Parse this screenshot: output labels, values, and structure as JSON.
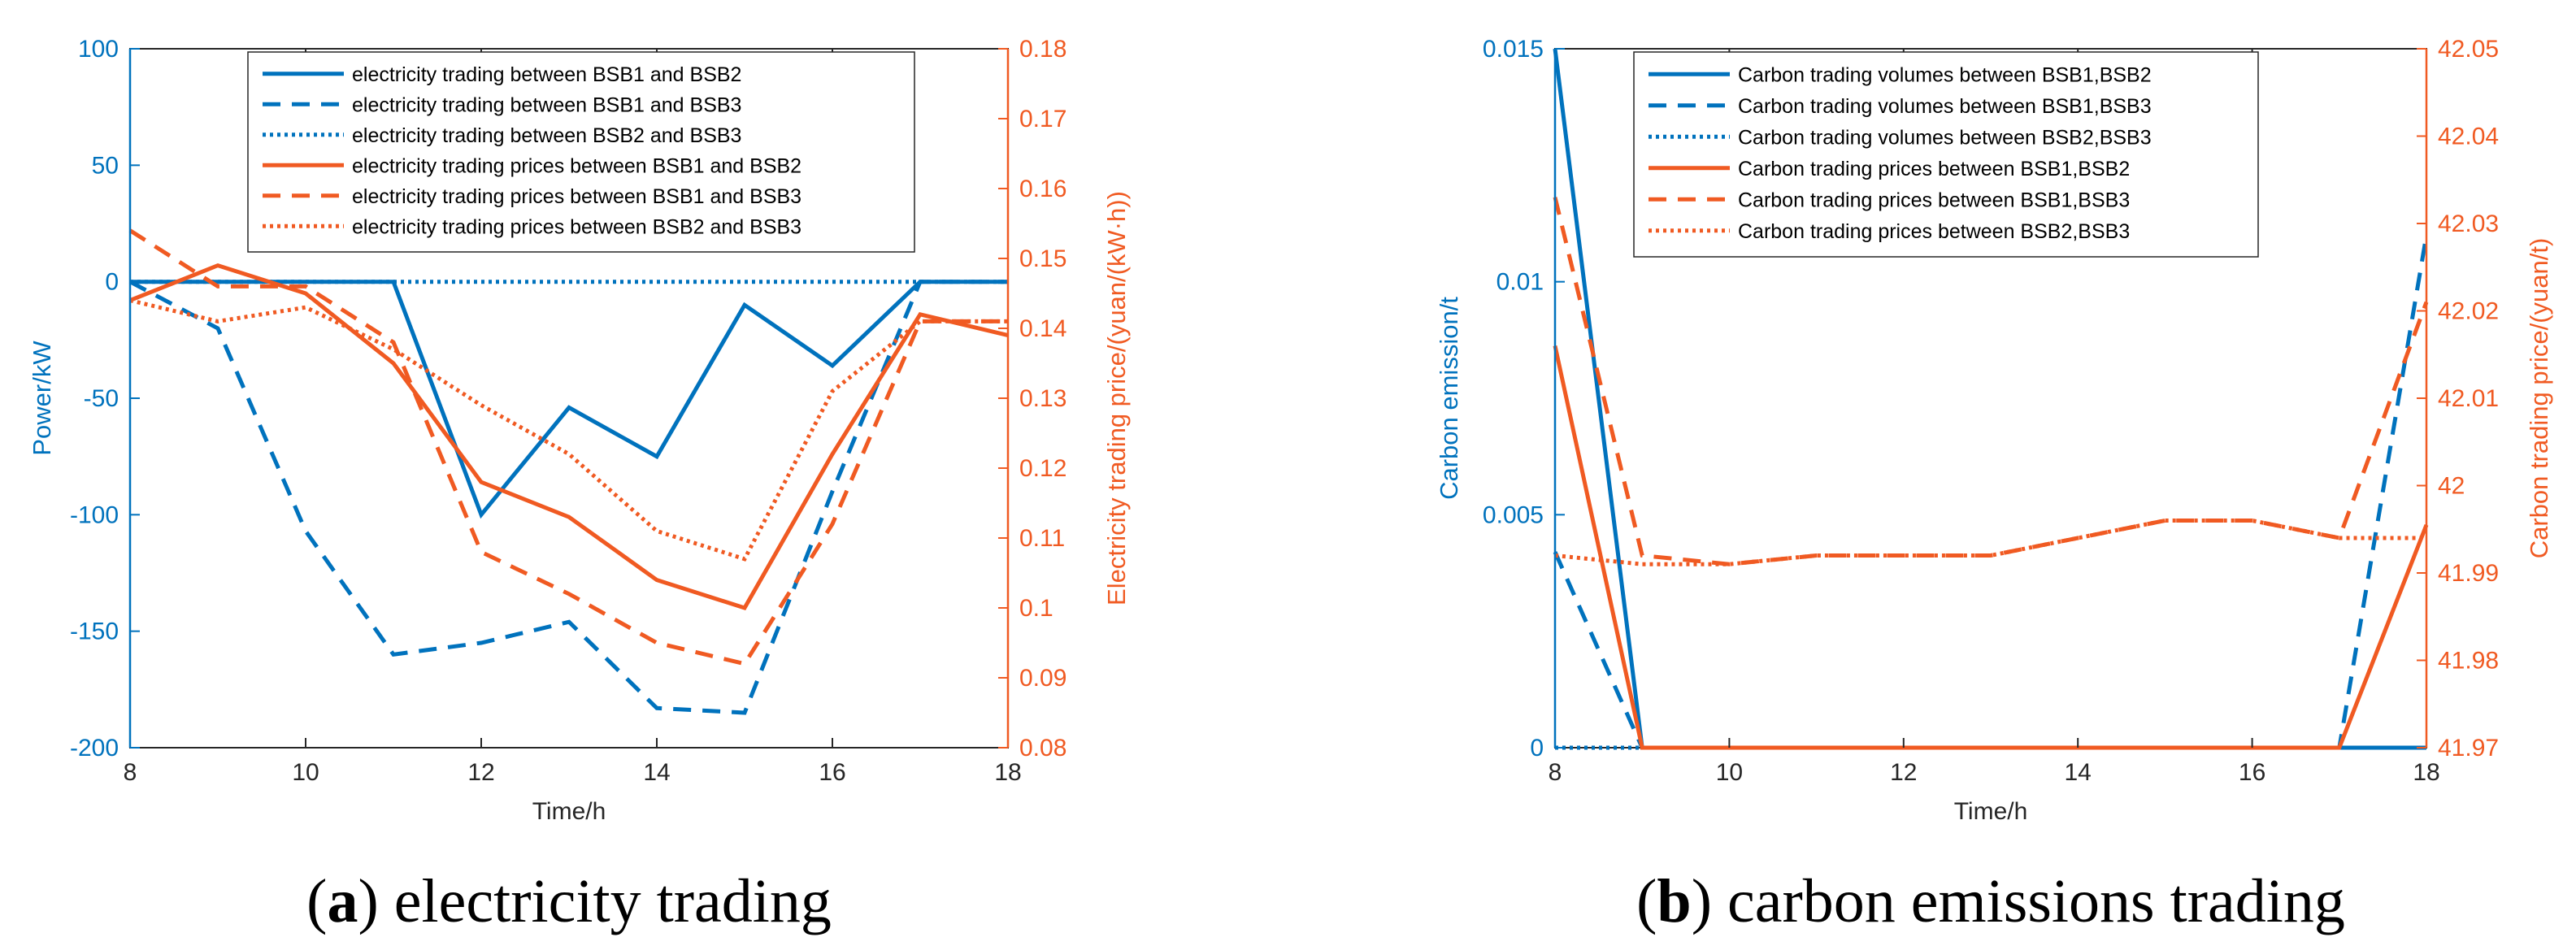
{
  "colors": {
    "blue": "#0072BD",
    "orange": "#F05A22",
    "axis": "#262626",
    "frame": "#262626"
  },
  "chart_data": [
    {
      "type": "line",
      "caption_letter": "a",
      "caption_text": "electricity trading",
      "xlabel": "Time/h",
      "ylabel_left": "Power/kW",
      "ylabel_right": "Electricity trading price/(yuan/(kW·h))",
      "x_ticks": [
        "8",
        "10",
        "12",
        "14",
        "16",
        "18"
      ],
      "y_left_ticks": [
        "-200",
        "-150",
        "-100",
        "-50",
        "0",
        "50",
        "100"
      ],
      "y_right_ticks": [
        "0.08",
        "0.09",
        "0.1",
        "0.11",
        "0.12",
        "0.13",
        "0.14",
        "0.15",
        "0.16",
        "0.17",
        "0.18"
      ],
      "xlim": [
        8,
        18
      ],
      "ylim_left": [
        -200,
        100
      ],
      "ylim_right": [
        0.08,
        0.18
      ],
      "x": [
        8,
        9,
        10,
        11,
        12,
        13,
        14,
        15,
        16,
        17,
        18
      ],
      "series": [
        {
          "name": "electricity trading between BSB1 and BSB2",
          "axis": "left",
          "style": "solid",
          "color": "blue",
          "values": [
            0,
            0,
            0,
            0,
            -100,
            -54,
            -75,
            -10,
            -36,
            0,
            0
          ]
        },
        {
          "name": "electricity trading between BSB1 and BSB3",
          "axis": "left",
          "style": "dashed",
          "color": "blue",
          "values": [
            0,
            -20,
            -107,
            -160,
            -155,
            -146,
            -183,
            -185,
            -90,
            0,
            0
          ]
        },
        {
          "name": "electricity trading between BSB2 and BSB3",
          "axis": "left",
          "style": "dotted",
          "color": "blue",
          "values": [
            0,
            0,
            0,
            0,
            0,
            0,
            0,
            0,
            0,
            0,
            0
          ]
        },
        {
          "name": "electricity trading prices between BSB1 and BSB2",
          "axis": "right",
          "style": "solid",
          "color": "orange",
          "values": [
            0.144,
            0.149,
            0.145,
            0.135,
            0.118,
            0.113,
            0.104,
            0.1,
            0.122,
            0.142,
            0.139
          ]
        },
        {
          "name": "electricity trading prices between BSB1 and BSB3",
          "axis": "right",
          "style": "dashed",
          "color": "orange",
          "values": [
            0.154,
            0.146,
            0.146,
            0.138,
            0.108,
            0.102,
            0.095,
            0.092,
            0.112,
            0.141,
            0.141
          ]
        },
        {
          "name": "electricity trading prices between BSB2 and BSB3",
          "axis": "right",
          "style": "dotted",
          "color": "orange",
          "values": [
            0.144,
            0.141,
            0.143,
            0.137,
            0.129,
            0.122,
            0.111,
            0.107,
            0.131,
            0.141,
            0.141
          ]
        }
      ]
    },
    {
      "type": "line",
      "caption_letter": "b",
      "caption_text": "carbon emissions trading",
      "xlabel": "Time/h",
      "ylabel_left": "Carbon emission/t",
      "ylabel_right": "Carbon trading price/(yuan/t)",
      "x_ticks": [
        "8",
        "10",
        "12",
        "14",
        "16",
        "18"
      ],
      "y_left_ticks": [
        "0",
        "0.005",
        "0.01",
        "0.015"
      ],
      "y_right_ticks": [
        "41.97",
        "41.98",
        "41.99",
        "42",
        "42.01",
        "42.02",
        "42.03",
        "42.04",
        "42.05"
      ],
      "xlim": [
        8,
        18
      ],
      "ylim_left": [
        0,
        0.015
      ],
      "ylim_right": [
        41.97,
        42.05
      ],
      "x": [
        8,
        9,
        10,
        11,
        12,
        13,
        14,
        15,
        16,
        17,
        18
      ],
      "series": [
        {
          "name": "Carbon trading volumes between BSB1,BSB2",
          "axis": "left",
          "style": "solid",
          "color": "blue",
          "values": [
            0.015,
            0,
            0,
            0,
            0,
            0,
            0,
            0,
            0,
            0,
            0
          ]
        },
        {
          "name": "Carbon trading volumes between BSB1,BSB3",
          "axis": "left",
          "style": "dashed",
          "color": "blue",
          "values": [
            0.0042,
            0,
            0,
            0,
            0,
            0,
            0,
            0,
            0,
            0,
            0.011
          ]
        },
        {
          "name": "Carbon trading volumes between BSB2,BSB3",
          "axis": "left",
          "style": "dotted",
          "color": "blue",
          "values": [
            0,
            0,
            0,
            0,
            0,
            0,
            0,
            0,
            0,
            0,
            0
          ]
        },
        {
          "name": "Carbon trading prices between BSB1,BSB2",
          "axis": "right",
          "style": "solid",
          "color": "orange",
          "values": [
            42.016,
            41.97,
            41.97,
            41.97,
            41.97,
            41.97,
            41.97,
            41.97,
            41.97,
            41.97,
            41.9955
          ]
        },
        {
          "name": "Carbon trading prices between BSB1,BSB3",
          "axis": "right",
          "style": "dashed",
          "color": "orange",
          "values": [
            42.033,
            41.992,
            41.991,
            41.992,
            41.992,
            41.992,
            41.994,
            41.996,
            41.996,
            41.994,
            42.021
          ]
        },
        {
          "name": "Carbon trading prices between BSB2,BSB3",
          "axis": "right",
          "style": "dotted",
          "color": "orange",
          "values": [
            41.992,
            41.991,
            41.991,
            41.992,
            41.992,
            41.992,
            41.994,
            41.996,
            41.996,
            41.994,
            41.994
          ]
        }
      ]
    }
  ]
}
